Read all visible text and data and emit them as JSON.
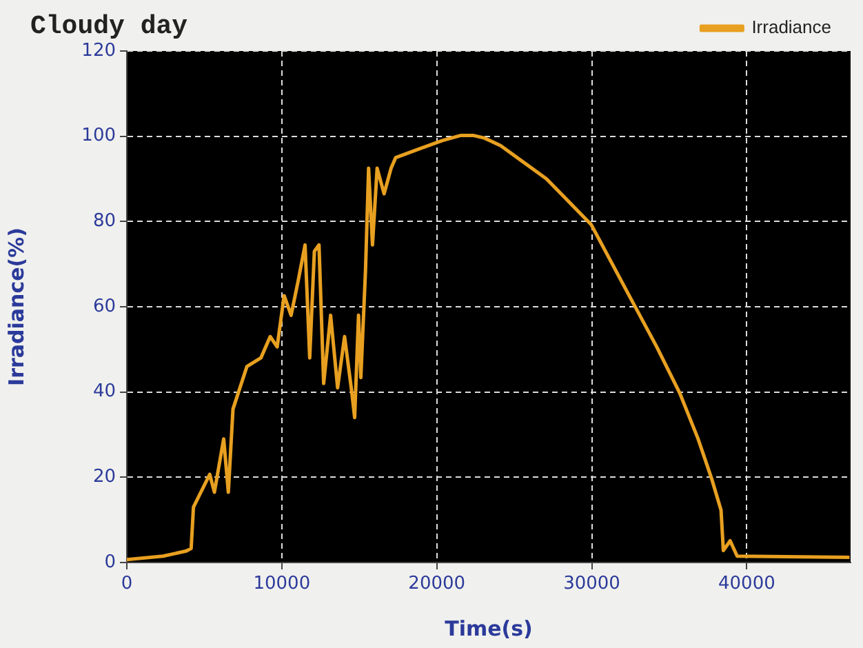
{
  "chart_data": {
    "type": "line",
    "title": "Cloudy day",
    "xlabel": "Time(s)",
    "ylabel": "Irradiance(%)",
    "x": [
      0,
      2340,
      3840,
      4150,
      4300,
      5350,
      5650,
      6250,
      6550,
      6850,
      7750,
      8650,
      9250,
      9700,
      10150,
      10600,
      11050,
      11500,
      11800,
      12100,
      12400,
      12700,
      13150,
      13600,
      14050,
      14500,
      14700,
      14950,
      15100,
      15400,
      15600,
      15850,
      16150,
      16600,
      17050,
      17350,
      18850,
      20360,
      21560,
      22340,
      23060,
      24120,
      27080,
      29960,
      32415,
      34190,
      35670,
      36860,
      37750,
      38340,
      38490,
      38930,
      39380,
      46630
    ],
    "series": [
      {
        "name": "Irradiance",
        "color": "#e8a020",
        "values": [
          0.7,
          1.5,
          2.7,
          3.3,
          13,
          20.7,
          16.5,
          29,
          16.5,
          36,
          46,
          48,
          53,
          50.6,
          62.6,
          58,
          66,
          74.5,
          48,
          73,
          74.5,
          42,
          58,
          41,
          53,
          40.4,
          34,
          58,
          43.4,
          68.5,
          92.5,
          74.5,
          92.5,
          86.5,
          92.5,
          95,
          97,
          99,
          100.2,
          100.2,
          99.6,
          97.8,
          90,
          79.3,
          62.6,
          50.6,
          39.8,
          29,
          19.5,
          12.3,
          2.8,
          5.1,
          1.5,
          1.2
        ]
      }
    ],
    "xlim": [
      0,
      46700
    ],
    "ylim": [
      0,
      120
    ],
    "xticks": [
      0,
      10000,
      20000,
      30000,
      40000
    ],
    "yticks": [
      0,
      20,
      40,
      60,
      80,
      100,
      120
    ],
    "grid": true,
    "legend": "top right"
  }
}
